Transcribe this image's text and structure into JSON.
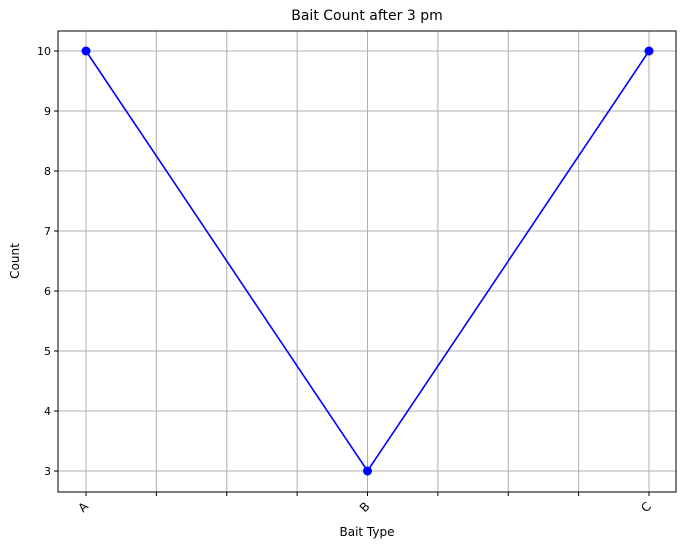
{
  "chart_data": {
    "type": "line",
    "title": "Bait Count after 3 pm",
    "xlabel": "Bait Type",
    "ylabel": "Count",
    "categories": [
      "A",
      "B",
      "C"
    ],
    "series": [
      {
        "values": [
          10,
          3,
          10
        ],
        "color": "#0000ff",
        "marker": "circle"
      }
    ],
    "yticks": [
      3,
      4,
      5,
      6,
      7,
      8,
      9,
      10
    ],
    "grid": true,
    "grid_color": "#b0b0b0"
  }
}
